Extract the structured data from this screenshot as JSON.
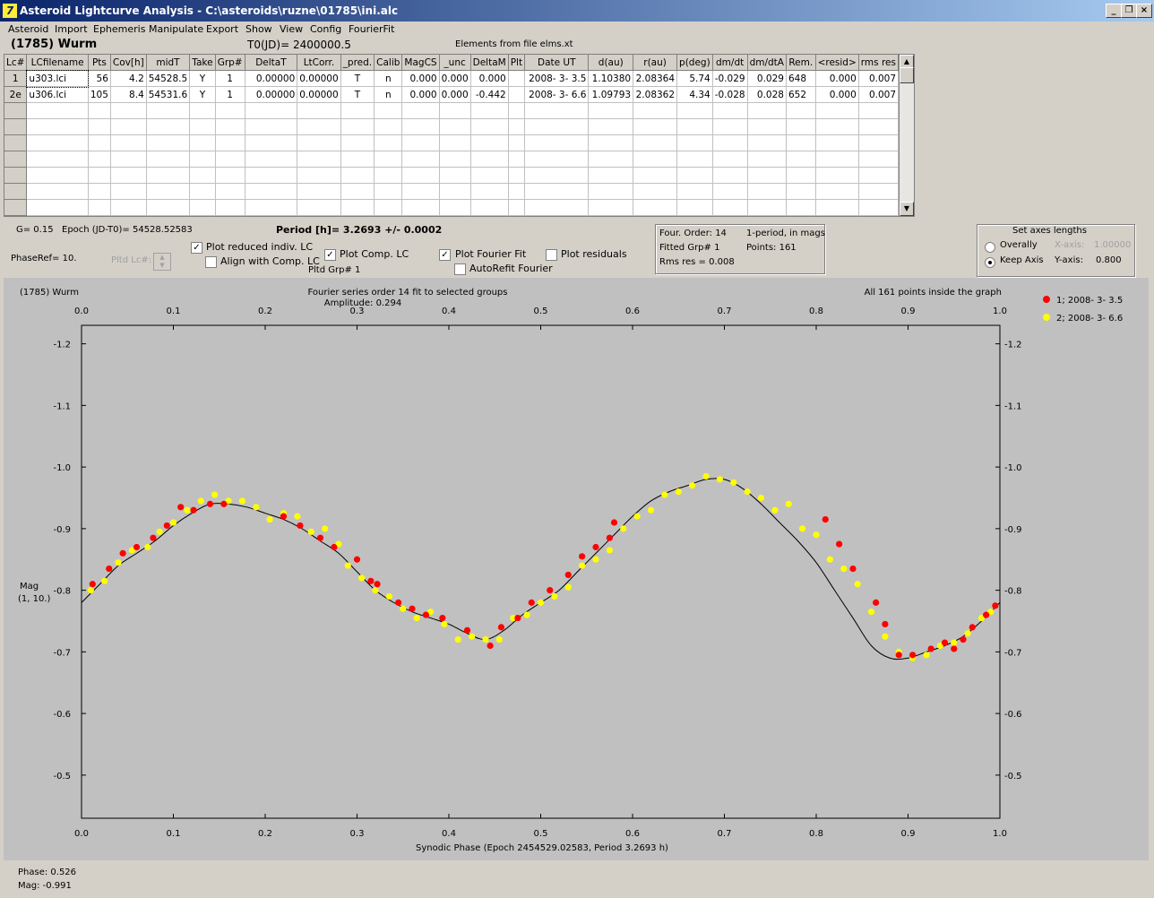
{
  "window": {
    "title": "Asteroid Lightcurve Analysis - C:\\asteroids\\ruzne\\01785\\ini.alc",
    "icon_glyph": "7",
    "buttons": {
      "minimize": "_",
      "restore": "❐",
      "close": "×"
    }
  },
  "menu": [
    "Asteroid",
    "Import",
    "Ephemeris",
    "Manipulate",
    "Export",
    "Show",
    "View",
    "Config",
    "FourierFit"
  ],
  "header": {
    "asteroid": "(1785) Wurm",
    "t0": "T0(JD)= 2400000.5",
    "elements": "Elements from file elms.xt"
  },
  "grid": {
    "columns": [
      "Lc#",
      "LCfilename",
      "Pts",
      "Cov[h]",
      "midT",
      "Take",
      "Grp#",
      "DeltaT",
      "LtCorr.",
      "_pred.",
      "Calib",
      "MagCS",
      "_unc",
      "DeltaM",
      "Plt",
      "Date UT",
      "d(au)",
      "r(au)",
      "p(deg)",
      "dm/dt",
      "dm/dtA",
      "Rem.",
      "<resid>",
      "rms res"
    ],
    "rows": [
      [
        "1",
        "u303.lci",
        "56",
        "4.2",
        "54528.5",
        "Y",
        "1",
        "0.00000",
        "0.00000",
        "T",
        "n",
        "0.000",
        "0.000",
        "0.000",
        "",
        "2008- 3- 3.5",
        "1.10380",
        "2.08364",
        "5.74",
        "-0.029",
        "0.029",
        "648",
        "0.000",
        "0.007"
      ],
      [
        "2e",
        "u306.lci",
        "105",
        "8.4",
        "54531.6",
        "Y",
        "1",
        "0.00000",
        "0.00000",
        "T",
        "n",
        "0.000",
        "0.000",
        "-0.442",
        "",
        "2008- 3- 6.6",
        "1.09793",
        "2.08362",
        "4.34",
        "-0.028",
        "0.028",
        "652",
        "0.000",
        "0.007"
      ]
    ],
    "empty_rows": 7
  },
  "info": {
    "g": "G= 0.15",
    "epoch": "Epoch (JD-T0)= 54528.52583",
    "period": "Period [h]= 3.2693 +/- 0.0002",
    "phaseref": "PhaseRef= 10.",
    "pltd_lc": "Pltd Lc#:",
    "pltd_grp": "Pltd Grp#  1"
  },
  "checks": {
    "plot_reduced": {
      "label": "Plot reduced indiv. LC",
      "checked": true
    },
    "align_comp": {
      "label": "Align with Comp. LC",
      "checked": false
    },
    "plot_comp": {
      "label": "Plot Comp. LC",
      "checked": true
    },
    "plot_fourier": {
      "label": "Plot Fourier Fit",
      "checked": true
    },
    "autorefit": {
      "label": "AutoRefit Fourier",
      "checked": false
    },
    "plot_residuals": {
      "label": "Plot residuals",
      "checked": false
    }
  },
  "fourier_box": {
    "order": "Four. Order: 14",
    "mode": "1-period, in mags",
    "fitted": "Fitted Grp# 1",
    "points": "Points: 161",
    "rms": "Rms res     = 0.008"
  },
  "axes_box": {
    "title": "Set axes lengths",
    "overally": "Overally",
    "keep": "Keep Axis",
    "xaxis_label": "X-axis:",
    "xaxis_value": "1.00000",
    "yaxis_label": "Y-axis:",
    "yaxis_value": "0.800",
    "selected": "keep"
  },
  "plot_text": {
    "name": "(1785) Wurm",
    "fit_title": "Fourier series order 14 fit to selected groups",
    "amplitude": "Amplitude: 0.294",
    "points_note": "All 161 points inside the graph",
    "legend": [
      "1; 2008- 3- 3.5",
      "2; 2008- 3- 6.6"
    ],
    "legend_colors": [
      "#ff0000",
      "#ffff00"
    ],
    "ylabel1": "Mag",
    "ylabel2": "(1, 10.)",
    "xlabel": "Synodic Phase (Epoch 2454529.02583, Period 3.2693 h)"
  },
  "status": {
    "phase": "Phase:  0.526",
    "mag": "Mag:    -0.991"
  },
  "chart_data": {
    "type": "scatter",
    "xlabel": "Synodic Phase (Epoch 2454529.02583, Period 3.2693 h)",
    "ylabel": "Mag (1, 10.)",
    "xlim": [
      0.0,
      1.0
    ],
    "ylim": [
      -0.43,
      -1.23
    ],
    "y_inverted": true,
    "x_ticks": [
      0.0,
      0.1,
      0.2,
      0.3,
      0.4,
      0.5,
      0.6,
      0.7,
      0.8,
      0.9,
      1.0
    ],
    "y_ticks": [
      -1.2,
      -1.1,
      -1.0,
      -0.9,
      -0.8,
      -0.7,
      -0.6,
      -0.5
    ],
    "fit_curve": {
      "name": "Fourier fit",
      "x": [
        0.0,
        0.02,
        0.04,
        0.06,
        0.08,
        0.1,
        0.12,
        0.14,
        0.16,
        0.18,
        0.2,
        0.22,
        0.24,
        0.26,
        0.28,
        0.3,
        0.32,
        0.34,
        0.36,
        0.38,
        0.4,
        0.42,
        0.44,
        0.46,
        0.48,
        0.5,
        0.52,
        0.54,
        0.56,
        0.58,
        0.6,
        0.62,
        0.64,
        0.66,
        0.68,
        0.7,
        0.72,
        0.74,
        0.76,
        0.78,
        0.8,
        0.82,
        0.84,
        0.86,
        0.88,
        0.9,
        0.92,
        0.94,
        0.96,
        0.98,
        1.0
      ],
      "y": [
        -0.78,
        -0.81,
        -0.84,
        -0.86,
        -0.88,
        -0.905,
        -0.925,
        -0.94,
        -0.94,
        -0.935,
        -0.925,
        -0.915,
        -0.9,
        -0.88,
        -0.86,
        -0.83,
        -0.8,
        -0.78,
        -0.765,
        -0.755,
        -0.745,
        -0.73,
        -0.72,
        -0.735,
        -0.76,
        -0.78,
        -0.8,
        -0.83,
        -0.86,
        -0.89,
        -0.92,
        -0.945,
        -0.96,
        -0.97,
        -0.98,
        -0.98,
        -0.965,
        -0.94,
        -0.91,
        -0.88,
        -0.845,
        -0.8,
        -0.755,
        -0.71,
        -0.69,
        -0.69,
        -0.7,
        -0.71,
        -0.725,
        -0.75,
        -0.78
      ]
    },
    "series": [
      {
        "name": "1; 2008- 3- 3.5",
        "color": "#ff0000",
        "x": [
          0.012,
          0.03,
          0.045,
          0.06,
          0.078,
          0.093,
          0.108,
          0.122,
          0.14,
          0.155,
          0.22,
          0.238,
          0.26,
          0.275,
          0.3,
          0.315,
          0.322,
          0.345,
          0.36,
          0.375,
          0.393,
          0.42,
          0.445,
          0.457,
          0.475,
          0.49,
          0.51,
          0.53,
          0.545,
          0.56,
          0.575,
          0.58,
          0.89,
          0.905,
          0.925,
          0.94,
          0.95,
          0.96,
          0.97,
          0.985,
          0.995,
          0.81,
          0.825,
          0.84,
          0.865,
          0.875
        ],
        "y": [
          -0.81,
          -0.835,
          -0.86,
          -0.87,
          -0.885,
          -0.905,
          -0.935,
          -0.93,
          -0.94,
          -0.94,
          -0.92,
          -0.905,
          -0.885,
          -0.87,
          -0.85,
          -0.815,
          -0.81,
          -0.78,
          -0.77,
          -0.76,
          -0.755,
          -0.735,
          -0.71,
          -0.74,
          -0.755,
          -0.78,
          -0.8,
          -0.825,
          -0.855,
          -0.87,
          -0.885,
          -0.91,
          -0.695,
          -0.695,
          -0.705,
          -0.715,
          -0.705,
          -0.72,
          -0.74,
          -0.76,
          -0.775,
          -0.915,
          -0.875,
          -0.835,
          -0.78,
          -0.745
        ]
      },
      {
        "name": "2; 2008- 3- 6.6",
        "color": "#ffff00",
        "x": [
          0.01,
          0.025,
          0.04,
          0.055,
          0.072,
          0.085,
          0.1,
          0.115,
          0.13,
          0.145,
          0.16,
          0.175,
          0.19,
          0.205,
          0.22,
          0.235,
          0.25,
          0.265,
          0.28,
          0.29,
          0.305,
          0.32,
          0.335,
          0.35,
          0.365,
          0.38,
          0.395,
          0.41,
          0.425,
          0.44,
          0.455,
          0.47,
          0.485,
          0.5,
          0.515,
          0.53,
          0.545,
          0.56,
          0.575,
          0.59,
          0.605,
          0.62,
          0.635,
          0.65,
          0.665,
          0.68,
          0.695,
          0.71,
          0.725,
          0.74,
          0.755,
          0.77,
          0.785,
          0.8,
          0.815,
          0.83,
          0.845,
          0.86,
          0.875,
          0.89,
          0.905,
          0.92,
          0.935,
          0.95,
          0.965,
          0.98,
          0.99
        ],
        "y": [
          -0.8,
          -0.815,
          -0.845,
          -0.865,
          -0.87,
          -0.895,
          -0.91,
          -0.93,
          -0.945,
          -0.955,
          -0.945,
          -0.945,
          -0.935,
          -0.915,
          -0.925,
          -0.92,
          -0.895,
          -0.9,
          -0.875,
          -0.84,
          -0.82,
          -0.8,
          -0.79,
          -0.77,
          -0.755,
          -0.765,
          -0.745,
          -0.72,
          -0.725,
          -0.72,
          -0.72,
          -0.755,
          -0.76,
          -0.78,
          -0.79,
          -0.805,
          -0.84,
          -0.85,
          -0.865,
          -0.9,
          -0.92,
          -0.93,
          -0.955,
          -0.96,
          -0.97,
          -0.985,
          -0.98,
          -0.975,
          -0.96,
          -0.95,
          -0.93,
          -0.94,
          -0.9,
          -0.89,
          -0.85,
          -0.835,
          -0.81,
          -0.765,
          -0.725,
          -0.7,
          -0.69,
          -0.695,
          -0.71,
          -0.715,
          -0.73,
          -0.755,
          -0.765
        ]
      }
    ]
  }
}
